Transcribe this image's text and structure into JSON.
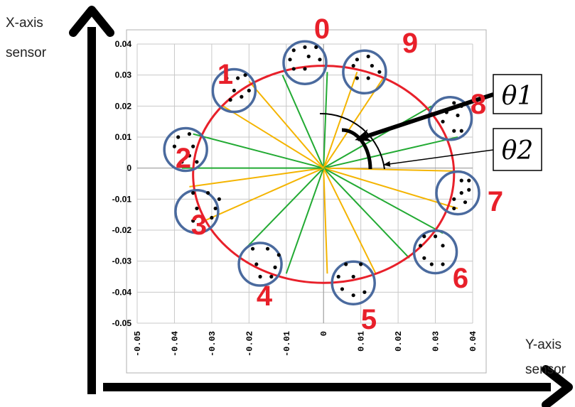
{
  "axis_captions": {
    "vertical": [
      "X-axis",
      "sensor"
    ],
    "horizontal": [
      "Y-axis",
      "sensor"
    ]
  },
  "angle_labels": {
    "theta1": "θ1",
    "theta2": "θ2"
  },
  "colors": {
    "circle": "#e8202a",
    "cluster_ring": "#4a6a9e",
    "green_line": "#22aa33",
    "yellow_line": "#f4b400",
    "grid": "#c8c8c8",
    "number_labels": "#e8202a"
  },
  "chart_data": {
    "type": "scatter",
    "title": "",
    "xlabel": "",
    "ylabel": "",
    "xlim": [
      -0.05,
      0.04
    ],
    "ylim": [
      -0.05,
      0.04
    ],
    "grid": true,
    "x_ticks": [
      "-0.05",
      "-0.04",
      "-0.03",
      "-0.02",
      "-0.01",
      "0",
      "0.01",
      "0.02",
      "0.03",
      "0.04"
    ],
    "y_ticks": [
      "0.04",
      "0.03",
      "0.02",
      "0.01",
      "0",
      "-0.01",
      "-0.02",
      "-0.03",
      "-0.04",
      "-0.05"
    ],
    "reference_circle": {
      "center": [
        0,
        -0.002
      ],
      "radius": 0.035
    },
    "clusters": [
      {
        "label": "0",
        "center": [
          -0.005,
          0.034
        ],
        "points": [
          [
            -0.008,
            0.038
          ],
          [
            -0.005,
            0.039
          ],
          [
            -0.002,
            0.039
          ],
          [
            -0.009,
            0.035
          ],
          [
            -0.004,
            0.036
          ],
          [
            -0.001,
            0.035
          ],
          [
            -0.008,
            0.032
          ],
          [
            -0.005,
            0.032
          ]
        ]
      },
      {
        "label": "1",
        "center": [
          -0.024,
          0.025
        ],
        "points": [
          [
            -0.026,
            0.029
          ],
          [
            -0.023,
            0.029
          ],
          [
            -0.021,
            0.03
          ],
          [
            -0.024,
            0.025
          ],
          [
            -0.02,
            0.025
          ],
          [
            -0.022,
            0.023
          ],
          [
            -0.025,
            0.022
          ]
        ]
      },
      {
        "label": "2",
        "center": [
          -0.037,
          0.006
        ],
        "points": [
          [
            -0.039,
            0.01
          ],
          [
            -0.036,
            0.011
          ],
          [
            -0.04,
            0.007
          ],
          [
            -0.035,
            0.007
          ],
          [
            -0.036,
            0.004
          ],
          [
            -0.038,
            0.002
          ],
          [
            -0.034,
            0.002
          ]
        ]
      },
      {
        "label": "3",
        "center": [
          -0.034,
          -0.014
        ],
        "points": [
          [
            -0.035,
            -0.008
          ],
          [
            -0.031,
            -0.008
          ],
          [
            -0.028,
            -0.01
          ],
          [
            -0.034,
            -0.013
          ],
          [
            -0.029,
            -0.013
          ],
          [
            -0.035,
            -0.017
          ],
          [
            -0.03,
            -0.016
          ]
        ]
      },
      {
        "label": "4",
        "center": [
          -0.017,
          -0.031
        ],
        "points": [
          [
            -0.019,
            -0.026
          ],
          [
            -0.015,
            -0.026
          ],
          [
            -0.012,
            -0.028
          ],
          [
            -0.018,
            -0.031
          ],
          [
            -0.013,
            -0.032
          ],
          [
            -0.017,
            -0.035
          ],
          [
            -0.014,
            -0.035
          ]
        ]
      },
      {
        "label": "5",
        "center": [
          0.008,
          -0.037
        ],
        "points": [
          [
            0.006,
            -0.031
          ],
          [
            0.01,
            -0.031
          ],
          [
            0.004,
            -0.035
          ],
          [
            0.008,
            -0.035
          ],
          [
            0.005,
            -0.039
          ],
          [
            0.008,
            -0.041
          ],
          [
            0.011,
            -0.04
          ]
        ]
      },
      {
        "label": "6",
        "center": [
          0.03,
          -0.027
        ],
        "points": [
          [
            0.027,
            -0.022
          ],
          [
            0.03,
            -0.022
          ],
          [
            0.026,
            -0.025
          ],
          [
            0.032,
            -0.025
          ],
          [
            0.027,
            -0.029
          ],
          [
            0.029,
            -0.031
          ],
          [
            0.032,
            -0.031
          ]
        ]
      },
      {
        "label": "7",
        "center": [
          0.036,
          -0.008
        ],
        "points": [
          [
            0.037,
            -0.004
          ],
          [
            0.039,
            -0.004
          ],
          [
            0.037,
            -0.008
          ],
          [
            0.039,
            -0.007
          ],
          [
            0.035,
            -0.01
          ],
          [
            0.038,
            -0.011
          ],
          [
            0.035,
            -0.013
          ]
        ]
      },
      {
        "label": "8",
        "center": [
          0.034,
          0.016
        ],
        "points": [
          [
            0.035,
            0.021
          ],
          [
            0.037,
            0.02
          ],
          [
            0.033,
            0.018
          ],
          [
            0.036,
            0.017
          ],
          [
            0.032,
            0.015
          ],
          [
            0.035,
            0.012
          ],
          [
            0.037,
            0.012
          ]
        ]
      },
      {
        "label": "9",
        "center": [
          0.011,
          0.031
        ],
        "points": [
          [
            0.009,
            0.035
          ],
          [
            0.012,
            0.036
          ],
          [
            0.008,
            0.033
          ],
          [
            0.013,
            0.033
          ],
          [
            0.009,
            0.029
          ],
          [
            0.012,
            0.029
          ],
          [
            0.015,
            0.031
          ]
        ]
      }
    ],
    "rays": [
      {
        "color": "green",
        "to": [
          -0.011,
          0.03
        ]
      },
      {
        "color": "green",
        "to": [
          0.001,
          0.031
        ]
      },
      {
        "color": "yellow",
        "to": [
          0.009,
          0.031
        ]
      },
      {
        "color": "yellow",
        "to": [
          0.016,
          0.029
        ]
      },
      {
        "color": "green",
        "to": [
          0.029,
          0.02
        ]
      },
      {
        "color": "green",
        "to": [
          0.036,
          0.01
        ]
      },
      {
        "color": "yellow",
        "to": [
          0.037,
          -0.001
        ]
      },
      {
        "color": "yellow",
        "to": [
          0.036,
          -0.013
        ]
      },
      {
        "color": "green",
        "to": [
          0.032,
          -0.021
        ]
      },
      {
        "color": "green",
        "to": [
          0.023,
          -0.029
        ]
      },
      {
        "color": "yellow",
        "to": [
          0.014,
          -0.034
        ]
      },
      {
        "color": "yellow",
        "to": [
          0.001,
          -0.034
        ]
      },
      {
        "color": "green",
        "to": [
          -0.01,
          -0.034
        ]
      },
      {
        "color": "green",
        "to": [
          -0.021,
          -0.026
        ]
      },
      {
        "color": "yellow",
        "to": [
          -0.032,
          -0.017
        ]
      },
      {
        "color": "yellow",
        "to": [
          -0.036,
          -0.006
        ]
      },
      {
        "color": "green",
        "to": [
          -0.038,
          0.0
        ]
      },
      {
        "color": "green",
        "to": [
          -0.035,
          0.011
        ]
      },
      {
        "color": "yellow",
        "to": [
          -0.027,
          0.02
        ]
      },
      {
        "color": "yellow",
        "to": [
          -0.02,
          0.028
        ]
      }
    ]
  }
}
